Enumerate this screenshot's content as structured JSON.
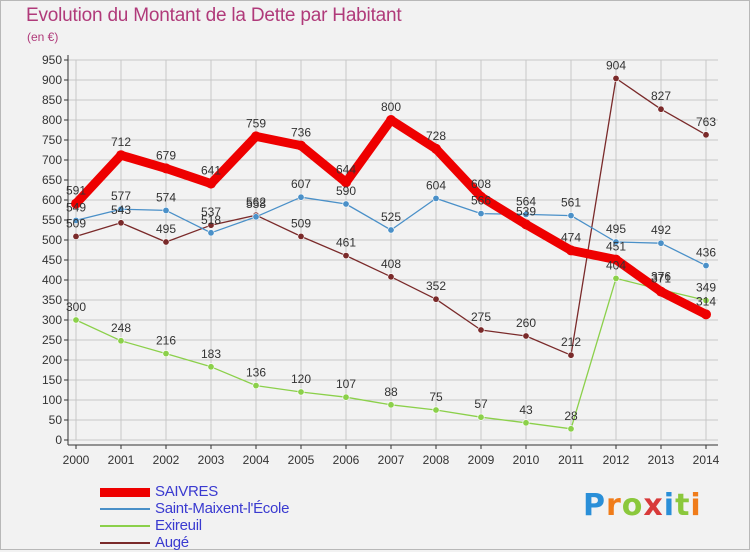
{
  "title": "Evolution du Montant de la Dette par Habitant",
  "unit": "(en €)",
  "logo": {
    "text": "Proxiti",
    "letter_colors": [
      "#2a8fd8",
      "#f07c1a",
      "#8bc83c",
      "#d83a3a",
      "#2a8fd8",
      "#8bc83c",
      "#f07c1a"
    ]
  },
  "chart_data": {
    "type": "line",
    "x": [
      "2000",
      "2001",
      "2002",
      "2003",
      "2004",
      "2005",
      "2006",
      "2007",
      "2008",
      "2009",
      "2010",
      "2011",
      "2012",
      "2013",
      "2014"
    ],
    "ylim": [
      0,
      950
    ],
    "y_ticks": [
      0,
      50,
      100,
      150,
      200,
      250,
      300,
      350,
      400,
      450,
      500,
      550,
      600,
      650,
      700,
      750,
      800,
      850,
      900,
      950
    ],
    "grid": true,
    "legend_position": "bottom-left",
    "series": [
      {
        "name": "Augé",
        "color": "#7a2a2a",
        "values": [
          509,
          543,
          495,
          537,
          562,
          509,
          461,
          408,
          352,
          275,
          260,
          212,
          904,
          827,
          763
        ]
      },
      {
        "name": "Saint-Maixent-l'École",
        "color": "#4a90c8",
        "values": [
          549,
          577,
          574,
          518,
          558,
          607,
          590,
          525,
          604,
          566,
          564,
          561,
          495,
          492,
          436
        ]
      },
      {
        "name": "Exireuil",
        "color": "#8bd04a",
        "values": [
          300,
          248,
          216,
          183,
          136,
          120,
          107,
          88,
          75,
          57,
          43,
          28,
          404,
          376,
          349
        ]
      },
      {
        "name": "SAIVRES",
        "color": "#ee0000",
        "values": [
          591,
          712,
          679,
          641,
          759,
          736,
          644,
          800,
          728,
          608,
          539,
          474,
          451,
          371,
          314
        ]
      }
    ],
    "legend_order": [
      "SAIVRES",
      "Saint-Maixent-l'École",
      "Exireuil",
      "Augé"
    ]
  }
}
